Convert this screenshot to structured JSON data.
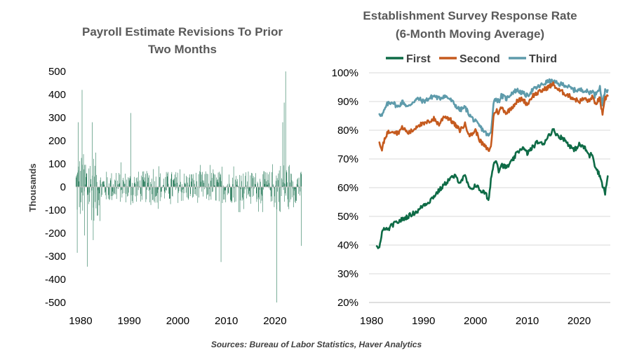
{
  "source": "Sources: Bureau of Labor Statistics, Haver Analytics",
  "colors": {
    "first": "#0e6b46",
    "second": "#c55a1e",
    "third": "#5e9bab",
    "bars": "#0e6b46",
    "grid": "#d9d9d9",
    "axis": "#bfbfbf"
  },
  "chart_data": [
    {
      "type": "bar",
      "title": "Payroll Estimate Revisions To Prior Two Months",
      "title_lines": [
        "Payroll Estimate Revisions To Prior",
        "Two Months"
      ],
      "xlabel": "",
      "ylabel": "Thousands",
      "xlim": [
        1979,
        2025.5
      ],
      "ylim": [
        -500,
        500
      ],
      "yticks": [
        500,
        400,
        300,
        200,
        100,
        0,
        -100,
        -200,
        -300,
        -400,
        -500
      ],
      "ytick_labels": [
        "500",
        "400",
        "300",
        "200",
        "100",
        "0",
        "-100",
        "-200",
        "-300",
        "-400",
        "-500"
      ],
      "xticks": [
        1980,
        1990,
        2000,
        2010,
        2020
      ],
      "xtick_labels": [
        "1980",
        "1990",
        "2000",
        "2010",
        "2020"
      ],
      "grid": false,
      "notable_points": [
        {
          "x": 1979.3,
          "y": -285
        },
        {
          "x": 1979.5,
          "y": 280
        },
        {
          "x": 1980.3,
          "y": 420
        },
        {
          "x": 1980.8,
          "y": -210
        },
        {
          "x": 1981.4,
          "y": -345
        },
        {
          "x": 1982.4,
          "y": 280
        },
        {
          "x": 1982.6,
          "y": -230
        },
        {
          "x": 1990.3,
          "y": 320
        },
        {
          "x": 2008.9,
          "y": -325
        },
        {
          "x": 2020.4,
          "y": -500
        },
        {
          "x": 2021.6,
          "y": 280
        },
        {
          "x": 2021.9,
          "y": 365
        },
        {
          "x": 2022.2,
          "y": 500
        },
        {
          "x": 2025.4,
          "y": -255
        }
      ]
    },
    {
      "type": "line",
      "title": "Establishment Survey Response Rate (6-Month Moving Average)",
      "title_lines": [
        "Establishment  Survey Response Rate",
        "(6-Month Moving Average)"
      ],
      "xlabel": "",
      "ylabel": "",
      "xlim": [
        1979.5,
        2026
      ],
      "ylim": [
        20,
        100
      ],
      "yticks": [
        100,
        90,
        80,
        70,
        60,
        50,
        40,
        30,
        20
      ],
      "ytick_labels": [
        "100%",
        "90%",
        "80%",
        "70%",
        "60%",
        "50%",
        "40%",
        "30%",
        "20%"
      ],
      "xticks": [
        1980,
        1990,
        2000,
        2010,
        2020
      ],
      "xtick_labels": [
        "1980",
        "1990",
        "2000",
        "2010",
        "2020"
      ],
      "grid": true,
      "legend": "top",
      "series": [
        {
          "name": "First",
          "color_key": "first",
          "x": [
            1981.0,
            1981.5,
            1982.0,
            1982.5,
            1983.0,
            1984.0,
            1985.0,
            1986.0,
            1987.0,
            1988.0,
            1989.0,
            1990.0,
            1991.0,
            1992.0,
            1993.0,
            1994.0,
            1995.0,
            1996.0,
            1997.0,
            1998.0,
            1999.0,
            2000.0,
            2001.0,
            2002.0,
            2002.5,
            2003.0,
            2003.5,
            2004.0,
            2004.5,
            2005.0,
            2006.0,
            2007.0,
            2008.0,
            2009.0,
            2010.0,
            2011.0,
            2012.0,
            2013.0,
            2014.0,
            2015.0,
            2016.0,
            2017.0,
            2018.0,
            2019.0,
            2020.0,
            2021.0,
            2022.0,
            2022.5,
            2023.0,
            2023.5,
            2024.0,
            2024.5,
            2025.0,
            2025.5
          ],
          "values": [
            40,
            39,
            44,
            46,
            45,
            47,
            48,
            49,
            50,
            51,
            52,
            54,
            55,
            57,
            59,
            61,
            63,
            64,
            62,
            64,
            59,
            61,
            59,
            58,
            55,
            63,
            68,
            70,
            66,
            68,
            67,
            69,
            72,
            74,
            72,
            74,
            76,
            75,
            78,
            80,
            78,
            77,
            75,
            73,
            75,
            74,
            71,
            72,
            68,
            66,
            64,
            61,
            58,
            64
          ]
        },
        {
          "name": "Second",
          "color_key": "second",
          "x": [
            1981.5,
            1982.0,
            1982.5,
            1983.0,
            1984.0,
            1985.0,
            1986.0,
            1987.0,
            1988.0,
            1989.0,
            1990.0,
            1991.0,
            1992.0,
            1993.0,
            1994.0,
            1995.0,
            1996.0,
            1997.0,
            1998.0,
            1999.0,
            2000.0,
            2001.0,
            2002.0,
            2002.5,
            2003.0,
            2003.5,
            2004.0,
            2004.5,
            2005.0,
            2006.0,
            2007.0,
            2008.0,
            2009.0,
            2010.0,
            2011.0,
            2012.0,
            2013.0,
            2014.0,
            2015.0,
            2016.0,
            2017.0,
            2018.0,
            2019.0,
            2020.0,
            2021.0,
            2022.0,
            2022.5,
            2023.0,
            2023.5,
            2024.0,
            2024.5,
            2025.0,
            2025.5
          ],
          "values": [
            75,
            73,
            77,
            79,
            80,
            79,
            81,
            79,
            80,
            82,
            82,
            83,
            84,
            82,
            85,
            84,
            82,
            80,
            82,
            78,
            80,
            76,
            74,
            73,
            74,
            85,
            87,
            86,
            88,
            86,
            88,
            90,
            91,
            89,
            92,
            93,
            94,
            95,
            96,
            94,
            93,
            92,
            91,
            90,
            91,
            90,
            92,
            89,
            90,
            91,
            85,
            91,
            92
          ]
        },
        {
          "name": "Third",
          "color_key": "third",
          "x": [
            1981.5,
            1982.0,
            1982.5,
            1983.0,
            1984.0,
            1985.0,
            1986.0,
            1987.0,
            1988.0,
            1989.0,
            1990.0,
            1991.0,
            1992.0,
            1993.0,
            1994.0,
            1995.0,
            1996.0,
            1997.0,
            1998.0,
            1999.0,
            2000.0,
            2001.0,
            2002.0,
            2002.5,
            2003.0,
            2003.5,
            2004.0,
            2004.5,
            2005.0,
            2006.0,
            2007.0,
            2008.0,
            2009.0,
            2010.0,
            2011.0,
            2012.0,
            2013.0,
            2014.0,
            2015.0,
            2016.0,
            2017.0,
            2018.0,
            2019.0,
            2020.0,
            2021.0,
            2022.0,
            2022.5,
            2023.0,
            2023.5,
            2024.0,
            2024.5,
            2025.0,
            2025.5
          ],
          "values": [
            86,
            85,
            87,
            89,
            90,
            88,
            90,
            88,
            90,
            91,
            90,
            91,
            92,
            91,
            92,
            91,
            89,
            87,
            88,
            85,
            83,
            81,
            79,
            78,
            79,
            90,
            91,
            90,
            92,
            91,
            93,
            94,
            93,
            92,
            94,
            95,
            96,
            97,
            97,
            96,
            96,
            95,
            94,
            94,
            94,
            93,
            94,
            92,
            94,
            95,
            89,
            94,
            94
          ]
        }
      ]
    }
  ]
}
